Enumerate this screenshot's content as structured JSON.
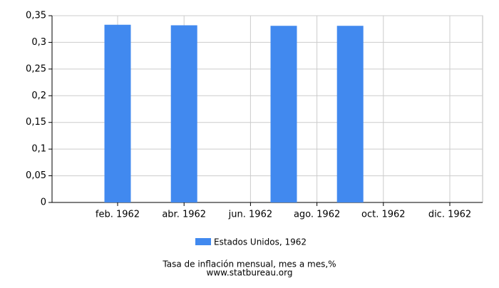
{
  "chart_data": {
    "type": "bar",
    "categories": [
      null,
      "feb. 1962",
      null,
      "abr. 1962",
      null,
      "jun. 1962",
      null,
      "ago. 1962",
      null,
      "oct. 1962",
      null,
      "dic. 1962"
    ],
    "series": [
      {
        "name": "Estados Unidos, 1962",
        "color": "#4189ef",
        "values": [
          null,
          0.333,
          null,
          0.332,
          null,
          null,
          0.331,
          null,
          0.331,
          null,
          null,
          null
        ]
      }
    ],
    "ylim": [
      0,
      0.35
    ],
    "yticks": [
      0,
      {
        "value": 0.05,
        "label": "0,05"
      },
      {
        "value": 0.1,
        "label": "0,1"
      },
      {
        "value": 0.15,
        "label": "0,15"
      },
      {
        "value": 0.2,
        "label": "0,2"
      },
      {
        "value": 0.25,
        "label": "0,25"
      },
      {
        "value": 0.3,
        "label": "0,3"
      },
      {
        "value": 0.35,
        "label": "0,35"
      }
    ],
    "grid": true,
    "caption": "Tasa de inflación mensual, mes a mes,%",
    "source": "www.statbureau.org"
  }
}
